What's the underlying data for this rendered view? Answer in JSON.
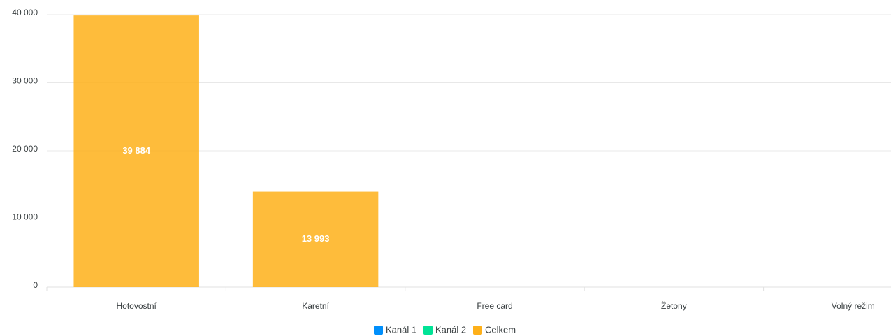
{
  "chart_data": {
    "type": "bar",
    "stacked": true,
    "categories": [
      "Hotovostní",
      "Karetní",
      "Free card",
      "Žetony",
      "Volný režim"
    ],
    "series": [
      {
        "name": "Kanál 1",
        "color": "#008ffb",
        "values": [
          0,
          0,
          0,
          0,
          0
        ]
      },
      {
        "name": "Kanál 2",
        "color": "#00e396",
        "values": [
          0,
          0,
          0,
          0,
          0
        ]
      },
      {
        "name": "Celkem",
        "color": "#feb019",
        "values": [
          39884,
          13993,
          0,
          0,
          0
        ],
        "value_labels": [
          "39 884",
          "13 993",
          null,
          null,
          null
        ]
      }
    ],
    "ylim": [
      0,
      40000
    ],
    "yticks": [
      0,
      {
        "value": 10000,
        "label": "10 000"
      },
      {
        "value": 20000,
        "label": "20 000"
      },
      {
        "value": 30000,
        "label": "30 000"
      },
      {
        "value": 40000,
        "label": "40 000"
      }
    ],
    "grid": true,
    "legend": "bottom"
  }
}
